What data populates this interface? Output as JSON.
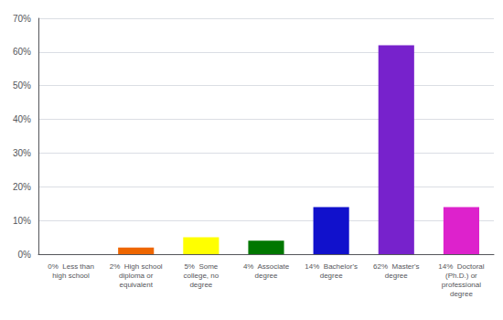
{
  "chart_data": {
    "type": "bar",
    "categories": [
      "0%  Less than\nhigh school",
      "2%  High school\ndiploma or\nequivalent",
      "5%  Some\ncollege, no\ndegree",
      "4%  Associate\ndegree",
      "14%  Bachelor's\ndegree",
      "62%  Master's\ndegree",
      "14%  Doctoral\n(Ph.D.) or\nprofessional\ndegree"
    ],
    "values": [
      0,
      2,
      5,
      4,
      14,
      62,
      14
    ],
    "colors": [
      "#dd2222",
      "#ee6600",
      "#ffff00",
      "#007700",
      "#1111cc",
      "#7722cc",
      "#dd22cc"
    ],
    "ylim": [
      0,
      70
    ],
    "yticks": [
      {
        "value": 0,
        "label": "0%"
      },
      {
        "value": 10,
        "label": "10%"
      },
      {
        "value": 20,
        "label": "20%"
      },
      {
        "value": 30,
        "label": "30%"
      },
      {
        "value": 40,
        "label": "40%"
      },
      {
        "value": 50,
        "label": "50%"
      },
      {
        "value": 60,
        "label": "60%"
      },
      {
        "value": 70,
        "label": "70%"
      }
    ],
    "grid": true
  }
}
